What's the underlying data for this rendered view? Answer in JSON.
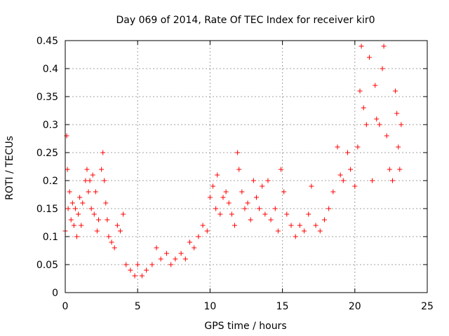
{
  "chart_data": {
    "type": "scatter",
    "title": "Day 069 of 2014, Rate Of TEC Index for receiver kir0",
    "xlabel": "GPS time / hours",
    "ylabel": "ROTI / TECUs",
    "xlim": [
      0,
      25
    ],
    "ylim": [
      0,
      0.45
    ],
    "x_ticks": [
      0,
      5,
      10,
      15,
      20,
      25
    ],
    "y_ticks": [
      0,
      0.05,
      0.1,
      0.15,
      0.2,
      0.25,
      0.3,
      0.35,
      0.4,
      0.45
    ],
    "x_tick_labels": [
      "0",
      "5",
      "10",
      "15",
      "20",
      "25"
    ],
    "y_tick_labels": [
      "0",
      "0.05",
      "0.1",
      "0.15",
      "0.2",
      "0.25",
      "0.3",
      "0.35",
      "0.4",
      "0.45"
    ],
    "grid": true,
    "marker": "+",
    "color": "#ff0000",
    "series": [
      {
        "name": "ROTI",
        "points": [
          [
            0.0,
            0.11
          ],
          [
            0.1,
            0.28
          ],
          [
            0.15,
            0.22
          ],
          [
            0.2,
            0.15
          ],
          [
            0.3,
            0.18
          ],
          [
            0.4,
            0.13
          ],
          [
            0.5,
            0.16
          ],
          [
            0.6,
            0.12
          ],
          [
            0.7,
            0.15
          ],
          [
            0.8,
            0.1
          ],
          [
            0.9,
            0.14
          ],
          [
            1.0,
            0.17
          ],
          [
            1.1,
            0.12
          ],
          [
            1.2,
            0.16
          ],
          [
            1.4,
            0.2
          ],
          [
            1.5,
            0.22
          ],
          [
            1.6,
            0.18
          ],
          [
            1.7,
            0.2
          ],
          [
            1.8,
            0.15
          ],
          [
            1.9,
            0.21
          ],
          [
            2.0,
            0.14
          ],
          [
            2.1,
            0.18
          ],
          [
            2.2,
            0.11
          ],
          [
            2.3,
            0.13
          ],
          [
            2.5,
            0.22
          ],
          [
            2.6,
            0.25
          ],
          [
            2.7,
            0.2
          ],
          [
            2.8,
            0.16
          ],
          [
            2.9,
            0.13
          ],
          [
            3.0,
            0.1
          ],
          [
            3.2,
            0.09
          ],
          [
            3.4,
            0.08
          ],
          [
            3.6,
            0.12
          ],
          [
            3.8,
            0.11
          ],
          [
            4.0,
            0.14
          ],
          [
            4.2,
            0.05
          ],
          [
            4.5,
            0.04
          ],
          [
            4.8,
            0.03
          ],
          [
            5.0,
            0.05
          ],
          [
            5.3,
            0.03
          ],
          [
            5.6,
            0.04
          ],
          [
            6.0,
            0.05
          ],
          [
            6.3,
            0.08
          ],
          [
            6.6,
            0.06
          ],
          [
            7.0,
            0.07
          ],
          [
            7.3,
            0.05
          ],
          [
            7.6,
            0.06
          ],
          [
            8.0,
            0.07
          ],
          [
            8.3,
            0.06
          ],
          [
            8.6,
            0.09
          ],
          [
            8.9,
            0.08
          ],
          [
            9.2,
            0.1
          ],
          [
            9.5,
            0.12
          ],
          [
            9.8,
            0.11
          ],
          [
            10.0,
            0.17
          ],
          [
            10.2,
            0.19
          ],
          [
            10.4,
            0.15
          ],
          [
            10.5,
            0.21
          ],
          [
            10.7,
            0.14
          ],
          [
            10.9,
            0.17
          ],
          [
            11.1,
            0.18
          ],
          [
            11.3,
            0.16
          ],
          [
            11.5,
            0.14
          ],
          [
            11.7,
            0.12
          ],
          [
            11.9,
            0.25
          ],
          [
            12.0,
            0.22
          ],
          [
            12.2,
            0.18
          ],
          [
            12.4,
            0.15
          ],
          [
            12.6,
            0.16
          ],
          [
            12.8,
            0.13
          ],
          [
            13.0,
            0.2
          ],
          [
            13.2,
            0.17
          ],
          [
            13.4,
            0.15
          ],
          [
            13.6,
            0.19
          ],
          [
            13.8,
            0.14
          ],
          [
            14.0,
            0.2
          ],
          [
            14.2,
            0.13
          ],
          [
            14.5,
            0.15
          ],
          [
            14.7,
            0.11
          ],
          [
            14.9,
            0.22
          ],
          [
            15.1,
            0.18
          ],
          [
            15.3,
            0.14
          ],
          [
            15.6,
            0.12
          ],
          [
            15.9,
            0.1
          ],
          [
            16.2,
            0.12
          ],
          [
            16.5,
            0.11
          ],
          [
            16.8,
            0.14
          ],
          [
            17.0,
            0.19
          ],
          [
            17.3,
            0.12
          ],
          [
            17.6,
            0.11
          ],
          [
            17.9,
            0.13
          ],
          [
            18.2,
            0.15
          ],
          [
            18.5,
            0.18
          ],
          [
            18.8,
            0.26
          ],
          [
            19.0,
            0.21
          ],
          [
            19.2,
            0.2
          ],
          [
            19.5,
            0.25
          ],
          [
            19.7,
            0.22
          ],
          [
            20.0,
            0.19
          ],
          [
            20.2,
            0.26
          ],
          [
            20.35,
            0.36
          ],
          [
            20.45,
            0.44
          ],
          [
            20.6,
            0.33
          ],
          [
            20.8,
            0.3
          ],
          [
            21.0,
            0.42
          ],
          [
            21.2,
            0.2
          ],
          [
            21.4,
            0.37
          ],
          [
            21.5,
            0.31
          ],
          [
            21.7,
            0.3
          ],
          [
            21.9,
            0.4
          ],
          [
            22.0,
            0.44
          ],
          [
            22.2,
            0.28
          ],
          [
            22.4,
            0.22
          ],
          [
            22.6,
            0.2
          ],
          [
            22.8,
            0.36
          ],
          [
            22.9,
            0.32
          ],
          [
            23.0,
            0.26
          ],
          [
            23.1,
            0.22
          ],
          [
            23.2,
            0.3
          ]
        ]
      }
    ]
  }
}
